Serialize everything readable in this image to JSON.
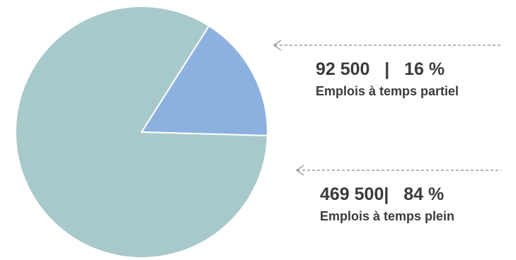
{
  "chart_data": {
    "type": "pie",
    "slices": [
      {
        "label": "Emplois à temps partiel",
        "value": 92500,
        "percent": 16,
        "value_text": "92 500   |   16 %",
        "color": "#8db1de"
      },
      {
        "label": "Emplois à temps plein",
        "value": 469500,
        "percent": 84,
        "value_text": "469 500|   84 %",
        "color": "#a8c9c9"
      }
    ],
    "arrow_color": "#8a8a8a",
    "slice_border_color": "#ffffff"
  }
}
